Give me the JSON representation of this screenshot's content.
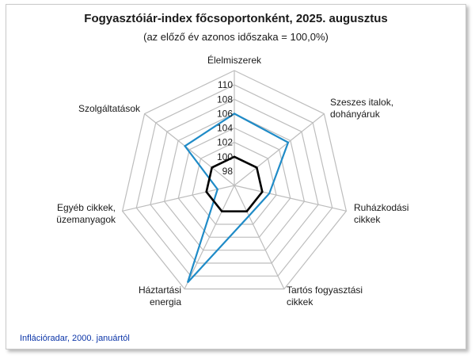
{
  "title": "Fogyasztóiár-index főcsoportonként, 2025. augusztus",
  "subtitle": "(az előző év azonos időszaka = 100,0%)",
  "footer": "Inflációradar, 2000. januártól",
  "colors": {
    "series": "#1f8bc7",
    "reference": "#000000",
    "grid": "#bdbdbd"
  },
  "chart_data": {
    "type": "radar",
    "title": "Fogyasztóiár-index főcsoportonként, 2025. augusztus",
    "subtitle": "(az előző év azonos időszaka = 100,0%)",
    "categories": [
      [
        "Élelmiszerek"
      ],
      [
        "Szeszes italok,",
        "dohányáruk"
      ],
      [
        "Ruházkodási",
        "cikkek"
      ],
      [
        "Tartós fogyasztási",
        "cikkek"
      ],
      [
        "Háztartási",
        "energia"
      ],
      [
        "Egyéb cikkek,",
        "üzemanyagok"
      ],
      [
        "Szolgáltatások"
      ]
    ],
    "rmin": 96,
    "rmax": 112,
    "ticks": [
      "98",
      "100",
      "102",
      "104",
      "106",
      "108",
      "110"
    ],
    "tick_values": [
      98,
      100,
      102,
      104,
      106,
      108,
      110
    ],
    "grid_values": [
      100,
      102,
      104,
      106,
      108,
      110,
      112
    ],
    "series": [
      {
        "values": [
          106.0,
          105.6,
          101.0,
          100.7,
          111.0,
          98.4,
          104.8
        ]
      },
      {
        "values": [
          100.0,
          100.0,
          100.0,
          100.0,
          100.0,
          100.0,
          100.0
        ]
      }
    ]
  }
}
